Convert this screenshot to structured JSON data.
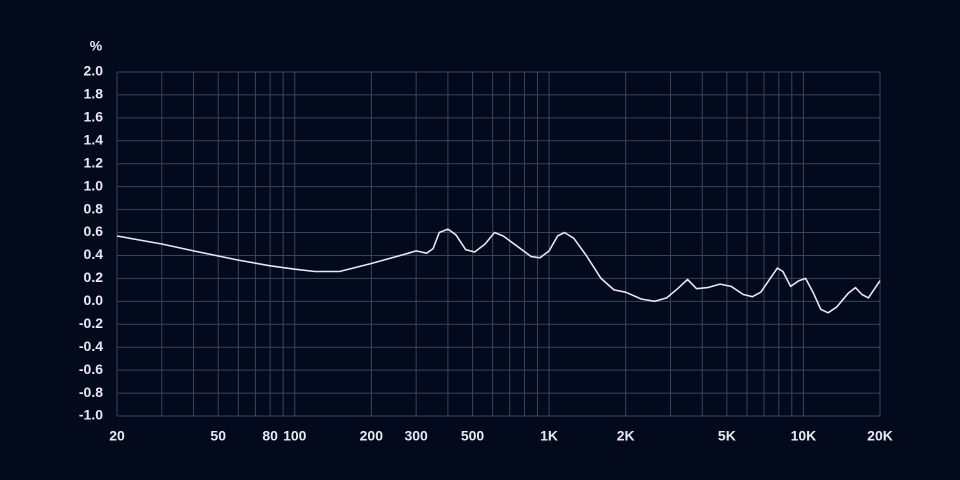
{
  "chart_data": {
    "type": "line",
    "ylabel": "%",
    "xscale": "log",
    "xlim": [
      20,
      20000
    ],
    "ylim": [
      -1,
      2
    ],
    "xticks": [
      20,
      50,
      80,
      100,
      200,
      300,
      500,
      {
        "value": 1000,
        "label": "1K"
      },
      {
        "value": 2000,
        "label": "2K"
      },
      {
        "value": 5000,
        "label": "5K"
      },
      {
        "value": 10000,
        "label": "10K"
      },
      {
        "value": 20000,
        "label": "20K"
      }
    ],
    "xgrid": [
      20,
      30,
      40,
      50,
      60,
      70,
      80,
      90,
      100,
      200,
      300,
      400,
      500,
      600,
      700,
      800,
      900,
      1000,
      2000,
      3000,
      4000,
      5000,
      6000,
      7000,
      8000,
      9000,
      10000,
      20000
    ],
    "yticks": [
      {
        "value": 2,
        "label": "2.0"
      },
      1.8,
      1.6,
      1.4,
      1.2,
      {
        "value": 1,
        "label": "1.0"
      },
      0.8,
      0.6,
      0.4,
      0.2,
      {
        "value": 0,
        "label": "0.0"
      },
      -0.2,
      -0.4,
      -0.6,
      -0.8,
      {
        "value": -1,
        "label": "-1.0"
      }
    ],
    "grid": true,
    "series": [
      {
        "color": "#e6e8ee",
        "x": [
          20,
          30,
          40,
          60,
          80,
          100,
          120,
          150,
          200,
          280,
          300,
          330,
          350,
          370,
          400,
          430,
          470,
          510,
          560,
          610,
          660,
          750,
          850,
          920,
          1000,
          1080,
          1150,
          1250,
          1400,
          1600,
          1800,
          2000,
          2300,
          2600,
          2900,
          3200,
          3500,
          3800,
          4200,
          4700,
          5200,
          5800,
          6300,
          6800,
          7400,
          7900,
          8300,
          8900,
          9600,
          10200,
          10900,
          11700,
          12500,
          13500,
          15000,
          16000,
          17000,
          18000,
          20000
        ],
        "y": [
          0.57,
          0.5,
          0.44,
          0.36,
          0.31,
          0.28,
          0.26,
          0.26,
          0.33,
          0.42,
          0.44,
          0.42,
          0.46,
          0.6,
          0.63,
          0.58,
          0.45,
          0.43,
          0.5,
          0.6,
          0.57,
          0.48,
          0.39,
          0.38,
          0.44,
          0.57,
          0.6,
          0.55,
          0.4,
          0.2,
          0.1,
          0.08,
          0.02,
          0.0,
          0.03,
          0.11,
          0.19,
          0.11,
          0.12,
          0.15,
          0.13,
          0.06,
          0.04,
          0.08,
          0.2,
          0.29,
          0.26,
          0.13,
          0.18,
          0.2,
          0.08,
          -0.07,
          -0.1,
          -0.05,
          0.07,
          0.12,
          0.06,
          0.03,
          0.18
        ]
      }
    ]
  }
}
